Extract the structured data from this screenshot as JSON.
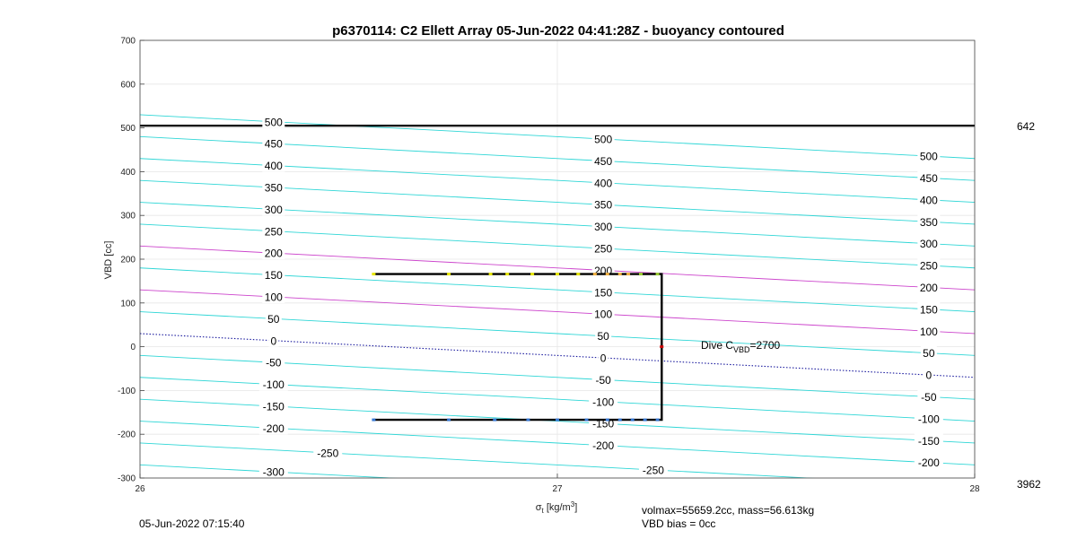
{
  "chart_data": {
    "type": "line",
    "title": "p6370114: C2 Ellett Array 05-Jun-2022 04:41:28Z - buoyancy contoured",
    "xlabel_main": "σ",
    "xlabel_sub": "t",
    "xlabel_units_pre": "[kg/m",
    "xlabel_units_sup": "3",
    "xlabel_units_post": "]",
    "ylabel": "VBD [cc]",
    "xlim": [
      26,
      28
    ],
    "ylim": [
      -300,
      700
    ],
    "xticks": [
      "26",
      "27",
      "28"
    ],
    "yticks": [
      "700",
      "600",
      "500",
      "400",
      "300",
      "200",
      "100",
      "0",
      "-100",
      "-200",
      "-300"
    ],
    "grid": true,
    "right_labels": {
      "top": "642",
      "bottom": "3962"
    },
    "dive_label_main": "Dive C",
    "dive_label_sub": "VBD",
    "dive_label_value": "=2700",
    "footer_timestamp": "05-Jun-2022 07:15:40",
    "footer_volmax": "volmax=55659.2cc, mass=56.613kg",
    "footer_vbd_bias": "VBD bias = 0cc",
    "colors": {
      "cyan": "#2fd6d6",
      "magenta": "#cc44cc",
      "navy": "#1a1a9e",
      "black": "#000000"
    },
    "contour_levels": [
      -300,
      -250,
      -200,
      -150,
      -100,
      -50,
      0,
      50,
      100,
      150,
      200,
      250,
      300,
      350,
      400,
      450,
      500
    ],
    "contour_slope": -50,
    "reference_line": {
      "y": 505,
      "color": "#000000"
    },
    "contour_labels": [
      {
        "level": 500,
        "x": 26.32
      },
      {
        "level": 450,
        "x": 26.32
      },
      {
        "level": 400,
        "x": 26.32
      },
      {
        "level": 350,
        "x": 26.32
      },
      {
        "level": 300,
        "x": 26.32
      },
      {
        "level": 250,
        "x": 26.32
      },
      {
        "level": 200,
        "x": 26.32
      },
      {
        "level": 150,
        "x": 26.32
      },
      {
        "level": 100,
        "x": 26.32
      },
      {
        "level": 50,
        "x": 26.32
      },
      {
        "level": 0,
        "x": 26.32
      },
      {
        "level": -50,
        "x": 26.32
      },
      {
        "level": -100,
        "x": 26.32
      },
      {
        "level": -150,
        "x": 26.32
      },
      {
        "level": -200,
        "x": 26.32
      },
      {
        "level": -250,
        "x": 26.45
      },
      {
        "level": -300,
        "x": 26.32
      },
      {
        "level": 500,
        "x": 27.11
      },
      {
        "level": 450,
        "x": 27.11
      },
      {
        "level": 400,
        "x": 27.11
      },
      {
        "level": 350,
        "x": 27.11
      },
      {
        "level": 300,
        "x": 27.11
      },
      {
        "level": 250,
        "x": 27.11
      },
      {
        "level": 200,
        "x": 27.11
      },
      {
        "level": 150,
        "x": 27.11
      },
      {
        "level": 100,
        "x": 27.11
      },
      {
        "level": 50,
        "x": 27.11
      },
      {
        "level": 0,
        "x": 27.11
      },
      {
        "level": -50,
        "x": 27.11
      },
      {
        "level": -100,
        "x": 27.11
      },
      {
        "level": -150,
        "x": 27.11
      },
      {
        "level": -200,
        "x": 27.11
      },
      {
        "level": -250,
        "x": 27.23
      },
      {
        "level": 500,
        "x": 27.89
      },
      {
        "level": 450,
        "x": 27.89
      },
      {
        "level": 400,
        "x": 27.89
      },
      {
        "level": 350,
        "x": 27.89
      },
      {
        "level": 300,
        "x": 27.89
      },
      {
        "level": 250,
        "x": 27.89
      },
      {
        "level": 200,
        "x": 27.89
      },
      {
        "level": 150,
        "x": 27.89
      },
      {
        "level": 100,
        "x": 27.89
      },
      {
        "level": 50,
        "x": 27.89
      },
      {
        "level": 0,
        "x": 27.89
      },
      {
        "level": -50,
        "x": 27.89
      },
      {
        "level": -100,
        "x": 27.89
      },
      {
        "level": -150,
        "x": 27.89
      },
      {
        "level": -200,
        "x": 27.89
      }
    ],
    "series": [
      {
        "points": [
          [
            26.56,
            166
          ],
          [
            27.25,
            166
          ],
          [
            27.25,
            -167
          ],
          [
            26.56,
            -167
          ]
        ],
        "color": "#000000"
      }
    ],
    "markers": [
      {
        "x": 26.56,
        "y": 166,
        "color": "#e6e600"
      },
      {
        "x": 26.74,
        "y": 166,
        "color": "#e6e600"
      },
      {
        "x": 26.84,
        "y": 166,
        "color": "#e6e600"
      },
      {
        "x": 26.88,
        "y": 166,
        "color": "#e6e600"
      },
      {
        "x": 26.94,
        "y": 166,
        "color": "#e6e600"
      },
      {
        "x": 27.0,
        "y": 166,
        "color": "#e6e600"
      },
      {
        "x": 27.05,
        "y": 166,
        "color": "#e6e600"
      },
      {
        "x": 27.09,
        "y": 166,
        "color": "#f0b040"
      },
      {
        "x": 27.12,
        "y": 166,
        "color": "#f0b040"
      },
      {
        "x": 27.15,
        "y": 166,
        "color": "#f0b040"
      },
      {
        "x": 27.17,
        "y": 166,
        "color": "#f0b040"
      },
      {
        "x": 27.2,
        "y": 166,
        "color": "#9acd32"
      },
      {
        "x": 27.24,
        "y": 166,
        "color": "#9acd32"
      },
      {
        "x": 27.25,
        "y": 0,
        "color": "#cc0000"
      },
      {
        "x": 26.56,
        "y": -167,
        "color": "#3a7bd5"
      },
      {
        "x": 26.74,
        "y": -167,
        "color": "#3a7bd5"
      },
      {
        "x": 26.85,
        "y": -167,
        "color": "#3a7bd5"
      },
      {
        "x": 26.93,
        "y": -167,
        "color": "#3a7bd5"
      },
      {
        "x": 27.0,
        "y": -167,
        "color": "#3a7bd5"
      },
      {
        "x": 27.07,
        "y": -167,
        "color": "#3a7bd5"
      },
      {
        "x": 27.12,
        "y": -167,
        "color": "#3a7bd5"
      },
      {
        "x": 27.15,
        "y": -167,
        "color": "#3a7bd5"
      },
      {
        "x": 27.18,
        "y": -167,
        "color": "#3a7bd5"
      },
      {
        "x": 27.21,
        "y": -167,
        "color": "#3a7bd5"
      },
      {
        "x": 27.24,
        "y": -167,
        "color": "#3a7bd5"
      }
    ]
  }
}
